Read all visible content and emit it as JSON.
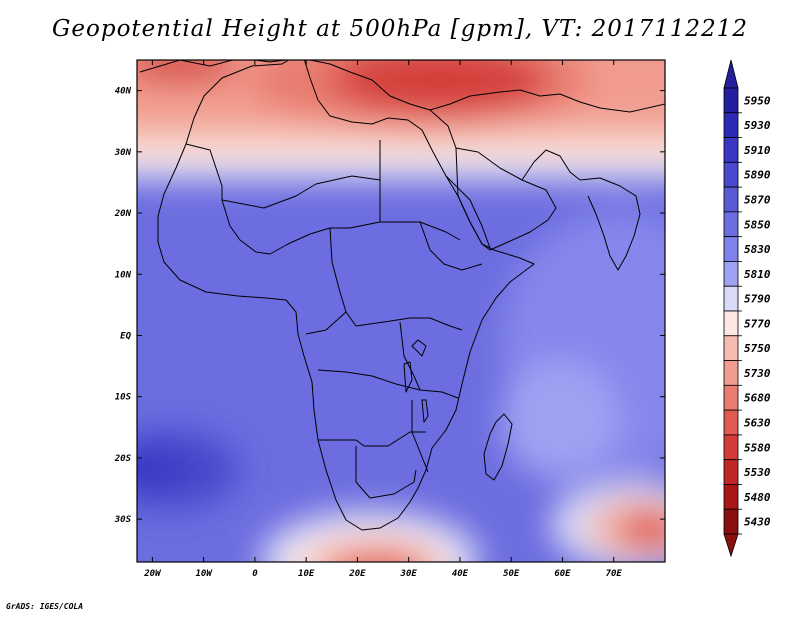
{
  "title": "Geopotential Height at 500hPa [gpm], VT: 2017112212",
  "credit": "GrADS: IGES/COLA",
  "map": {
    "projection": "latlon",
    "lon_range": [
      -23,
      80
    ],
    "lat_range": [
      -37,
      45
    ],
    "lon_ticks": [
      {
        "value": -20,
        "label": "20W"
      },
      {
        "value": -10,
        "label": "10W"
      },
      {
        "value": 0,
        "label": "0"
      },
      {
        "value": 10,
        "label": "10E"
      },
      {
        "value": 20,
        "label": "20E"
      },
      {
        "value": 30,
        "label": "30E"
      },
      {
        "value": 40,
        "label": "40E"
      },
      {
        "value": 50,
        "label": "50E"
      },
      {
        "value": 60,
        "label": "60E"
      },
      {
        "value": 70,
        "label": "70E"
      }
    ],
    "lat_ticks": [
      {
        "value": 40,
        "label": "40N"
      },
      {
        "value": 30,
        "label": "30N"
      },
      {
        "value": 20,
        "label": "20N"
      },
      {
        "value": 10,
        "label": "10N"
      },
      {
        "value": 0,
        "label": "EQ"
      },
      {
        "value": -10,
        "label": "10S"
      },
      {
        "value": -20,
        "label": "20S"
      },
      {
        "value": -30,
        "label": "30S"
      }
    ],
    "colorbar": {
      "levels": [
        5950,
        5930,
        5910,
        5890,
        5870,
        5850,
        5830,
        5810,
        5790,
        5770,
        5750,
        5730,
        5680,
        5630,
        5580,
        5530,
        5480,
        5430
      ],
      "colors": [
        "#241f9e",
        "#2e2ab8",
        "#3a37c4",
        "#4a48cc",
        "#5b5ad6",
        "#6c6de0",
        "#7f82ea",
        "#9fa2f2",
        "#d8daf8",
        "#fce7e1",
        "#f5bdb0",
        "#f19c8e",
        "#e97b70",
        "#e05a52",
        "#d43c3a",
        "#c12727",
        "#a81818",
        "#8b0f0f"
      ]
    },
    "coastline_color": "#000000"
  }
}
